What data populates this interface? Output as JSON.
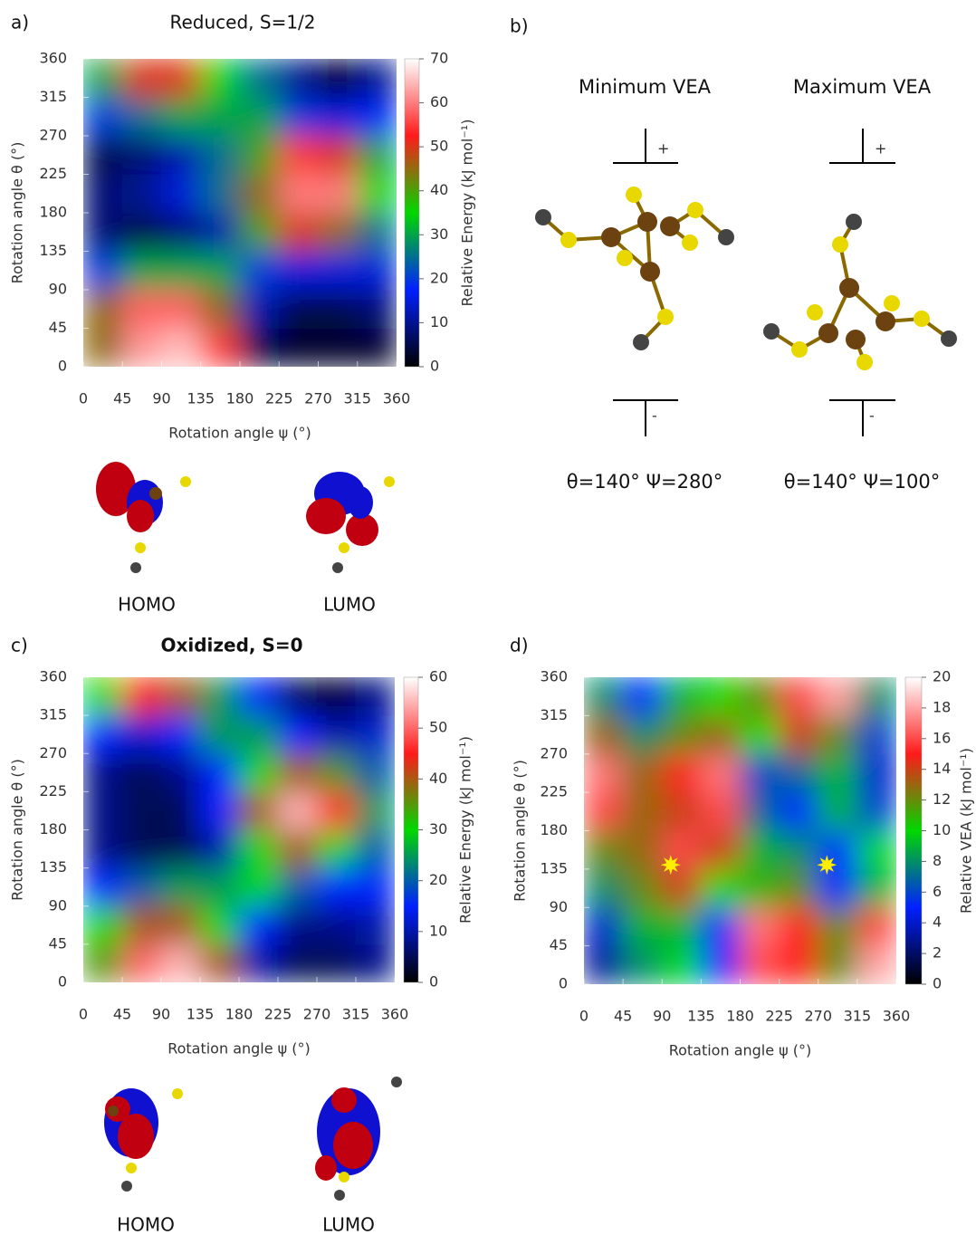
{
  "chart_data": [
    {
      "type": "heatmap",
      "label": "a)",
      "title": "Reduced, S=1/2",
      "xlabel": "Rotation angle ψ (°)",
      "ylabel": "Rotation angle θ (°)",
      "colorbar_label": "Relative Energy (kJ mol⁻¹)",
      "x": [
        22.5,
        67.5,
        112.5,
        157.5,
        202.5,
        247.5,
        292.5,
        337.5
      ],
      "y": [
        22.5,
        67.5,
        112.5,
        157.5,
        202.5,
        247.5,
        292.5,
        337.5
      ],
      "z": [
        [
          45,
          62,
          65,
          55,
          5,
          3,
          3,
          3
        ],
        [
          45,
          58,
          58,
          45,
          12,
          5,
          5,
          8
        ],
        [
          20,
          30,
          30,
          30,
          20,
          15,
          15,
          15
        ],
        [
          8,
          5,
          8,
          12,
          40,
          50,
          45,
          25
        ],
        [
          8,
          10,
          15,
          25,
          45,
          60,
          60,
          35
        ],
        [
          5,
          8,
          12,
          25,
          40,
          55,
          50,
          30
        ],
        [
          20,
          25,
          30,
          30,
          30,
          20,
          15,
          18
        ],
        [
          30,
          50,
          50,
          35,
          25,
          10,
          3,
          10
        ]
      ],
      "xlim": [
        0,
        360
      ],
      "ylim": [
        0,
        360
      ],
      "zlim": [
        0,
        70
      ],
      "xticks": [
        0,
        45,
        90,
        135,
        180,
        225,
        270,
        315,
        360
      ],
      "yticks": [
        0,
        45,
        90,
        135,
        180,
        225,
        270,
        315,
        360
      ],
      "zticks": [
        0,
        10,
        20,
        30,
        40,
        50,
        60,
        70
      ],
      "colorscale": [
        "#000000",
        "#0020ff",
        "#00d800",
        "#ff1a1a",
        "#ffffff"
      ],
      "orbitals": [
        "HOMO",
        "LUMO"
      ]
    },
    {
      "type": "heatmap",
      "label": "c)",
      "title": "Oxidized, S=0",
      "xlabel": "Rotation angle ψ (°)",
      "ylabel": "Rotation angle θ (°)",
      "colorbar_label": "Relative Energy (kJ mol⁻¹)",
      "x": [
        22.5,
        67.5,
        112.5,
        157.5,
        202.5,
        247.5,
        292.5,
        337.5
      ],
      "y": [
        22.5,
        67.5,
        112.5,
        157.5,
        202.5,
        247.5,
        292.5,
        337.5
      ],
      "z": [
        [
          35,
          50,
          55,
          40,
          10,
          5,
          5,
          8
        ],
        [
          30,
          40,
          40,
          30,
          15,
          8,
          8,
          10
        ],
        [
          15,
          20,
          25,
          25,
          30,
          20,
          15,
          15
        ],
        [
          8,
          5,
          5,
          10,
          30,
          40,
          30,
          20
        ],
        [
          8,
          5,
          5,
          15,
          40,
          55,
          45,
          25
        ],
        [
          8,
          5,
          8,
          15,
          30,
          40,
          35,
          20
        ],
        [
          15,
          12,
          15,
          25,
          25,
          15,
          10,
          12
        ],
        [
          30,
          45,
          40,
          25,
          15,
          5,
          3,
          8
        ]
      ],
      "xlim": [
        0,
        360
      ],
      "ylim": [
        0,
        360
      ],
      "zlim": [
        0,
        60
      ],
      "xticks": [
        0,
        45,
        90,
        135,
        180,
        225,
        270,
        315,
        360
      ],
      "yticks": [
        0,
        45,
        90,
        135,
        180,
        225,
        270,
        315,
        360
      ],
      "zticks": [
        0,
        10,
        20,
        30,
        40,
        50,
        60
      ],
      "colorscale": [
        "#000000",
        "#0020ff",
        "#00d800",
        "#ff1a1a",
        "#ffffff"
      ],
      "orbitals": [
        "HOMO",
        "LUMO"
      ]
    },
    {
      "type": "heatmap",
      "label": "d)",
      "xlabel": "Rotation angle ψ (°)",
      "ylabel": "Rotation angle θ (°)",
      "colorbar_label": "Relative VEA (kJ mol⁻¹)",
      "x": [
        22.5,
        67.5,
        112.5,
        157.5,
        202.5,
        247.5,
        292.5,
        337.5
      ],
      "y": [
        22.5,
        67.5,
        112.5,
        157.5,
        202.5,
        247.5,
        292.5,
        337.5
      ],
      "z": [
        [
          3,
          8,
          10,
          5,
          16,
          15,
          12,
          18
        ],
        [
          4,
          9,
          9,
          5,
          17,
          15,
          12,
          16
        ],
        [
          8,
          12,
          14,
          10,
          11,
          12,
          5,
          9
        ],
        [
          12,
          13,
          16,
          14,
          9,
          8,
          5,
          10
        ],
        [
          16,
          13,
          14,
          16,
          7,
          5,
          9,
          6
        ],
        [
          17,
          13,
          15,
          17,
          6,
          7,
          9,
          4
        ],
        [
          13,
          8,
          12,
          13,
          10,
          14,
          12,
          6
        ],
        [
          8,
          5,
          9,
          10,
          12,
          16,
          18,
          8
        ]
      ],
      "xlim": [
        0,
        360
      ],
      "ylim": [
        0,
        360
      ],
      "zlim": [
        0,
        20
      ],
      "xticks": [
        0,
        45,
        90,
        135,
        180,
        225,
        270,
        315,
        360
      ],
      "yticks": [
        0,
        45,
        90,
        135,
        180,
        225,
        270,
        315,
        360
      ],
      "zticks": [
        0,
        2,
        4,
        6,
        8,
        10,
        12,
        14,
        16,
        18,
        20
      ],
      "colorscale": [
        "#000000",
        "#0020ff",
        "#00d800",
        "#ff1a1a",
        "#ffffff"
      ],
      "markers": {
        "x": [
          100,
          280
        ],
        "y": [
          140,
          140
        ],
        "color": "#ffee00"
      }
    }
  ],
  "panel_b": {
    "label": "b)",
    "structures": [
      {
        "title": "Minimum VEA",
        "plus": "+",
        "minus": "-",
        "angles": "θ=140° Ψ=280°"
      },
      {
        "title": "Maximum VEA",
        "plus": "+",
        "minus": "-",
        "angles": "θ=140° Ψ=100°"
      }
    ]
  }
}
